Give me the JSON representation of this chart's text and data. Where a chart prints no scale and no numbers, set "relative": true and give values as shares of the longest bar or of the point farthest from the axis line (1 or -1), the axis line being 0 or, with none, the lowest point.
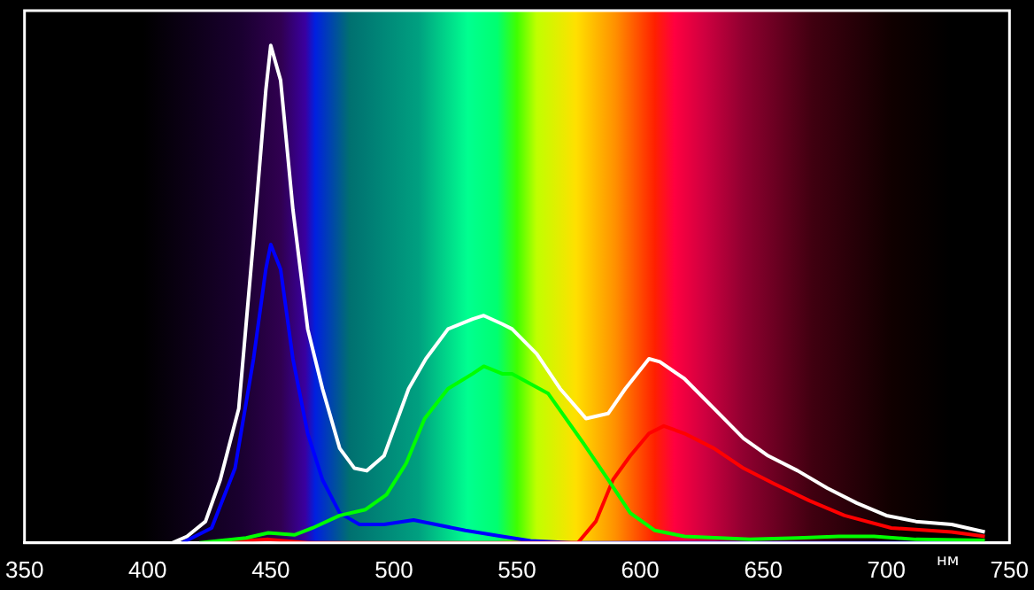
{
  "chart_data": {
    "type": "line",
    "xlabel": "нм",
    "relative": true,
    "xlim": [
      350,
      750
    ],
    "xticks": [
      350,
      400,
      450,
      500,
      550,
      600,
      650,
      700,
      750
    ],
    "grid": false,
    "legend": false,
    "marker": "none",
    "line_style": "solid",
    "series": [
      {
        "color": "#ffffff",
        "x": [
          410,
          416,
          423.5,
          429.5,
          437,
          443,
          448,
          450,
          454,
          459,
          465,
          471,
          478,
          484,
          489,
          496,
          506,
          513,
          522,
          532,
          536.5,
          544,
          548,
          558,
          567.5,
          578,
          587,
          594,
          603.6,
          608,
          618,
          630,
          642,
          652,
          664,
          676,
          688,
          700,
          712,
          726.5,
          740
        ],
        "values": [
          0,
          0.013,
          0.043,
          0.127,
          0.27,
          0.61,
          0.91,
          1,
          0.93,
          0.67,
          0.43,
          0.31,
          0.19,
          0.15,
          0.145,
          0.175,
          0.31,
          0.37,
          0.43,
          0.45,
          0.457,
          0.44,
          0.43,
          0.38,
          0.31,
          0.25,
          0.26,
          0.31,
          0.37,
          0.364,
          0.33,
          0.27,
          0.21,
          0.175,
          0.145,
          0.11,
          0.08,
          0.055,
          0.043,
          0.037,
          0.022
        ]
      },
      {
        "color": "#00ff00",
        "x": [
          421,
          440,
          449,
          459.6,
          467,
          478,
          488.5,
          497,
          505,
          512.5,
          522,
          532,
          536.5,
          544,
          548,
          562.7,
          577,
          587,
          596,
          606,
          618,
          644.6,
          664,
          680.7,
          695,
          712,
          740
        ],
        "values": [
          0,
          0.01,
          0.02,
          0.016,
          0.03,
          0.055,
          0.067,
          0.097,
          0.16,
          0.25,
          0.31,
          0.34,
          0.355,
          0.34,
          0.34,
          0.3,
          0.2,
          0.127,
          0.06,
          0.025,
          0.013,
          0.007,
          0.01,
          0.013,
          0.013,
          0.007,
          0.005
        ]
      },
      {
        "color": "#ff0000",
        "x": [
          428,
          449,
          465,
          574.7,
          582,
          589,
          596,
          603.6,
          609.6,
          618,
          630,
          642,
          654,
          668.7,
          683,
          702,
          726.5,
          740
        ],
        "values": [
          0,
          0.007,
          0,
          0,
          0.043,
          0.127,
          0.175,
          0.22,
          0.235,
          0.22,
          0.19,
          0.15,
          0.12,
          0.085,
          0.055,
          0.03,
          0.022,
          0.013
        ]
      },
      {
        "color": "#0000ff",
        "x": [
          414,
          426,
          435.5,
          443,
          448,
          450,
          454,
          459,
          465,
          471,
          478,
          486,
          496,
          508,
          517,
          529,
          544,
          555.5,
          572,
          740
        ],
        "values": [
          0,
          0.03,
          0.15,
          0.37,
          0.55,
          0.6,
          0.55,
          0.37,
          0.22,
          0.127,
          0.06,
          0.037,
          0.037,
          0.046,
          0.037,
          0.025,
          0.013,
          0.004,
          0,
          0
        ]
      }
    ]
  }
}
